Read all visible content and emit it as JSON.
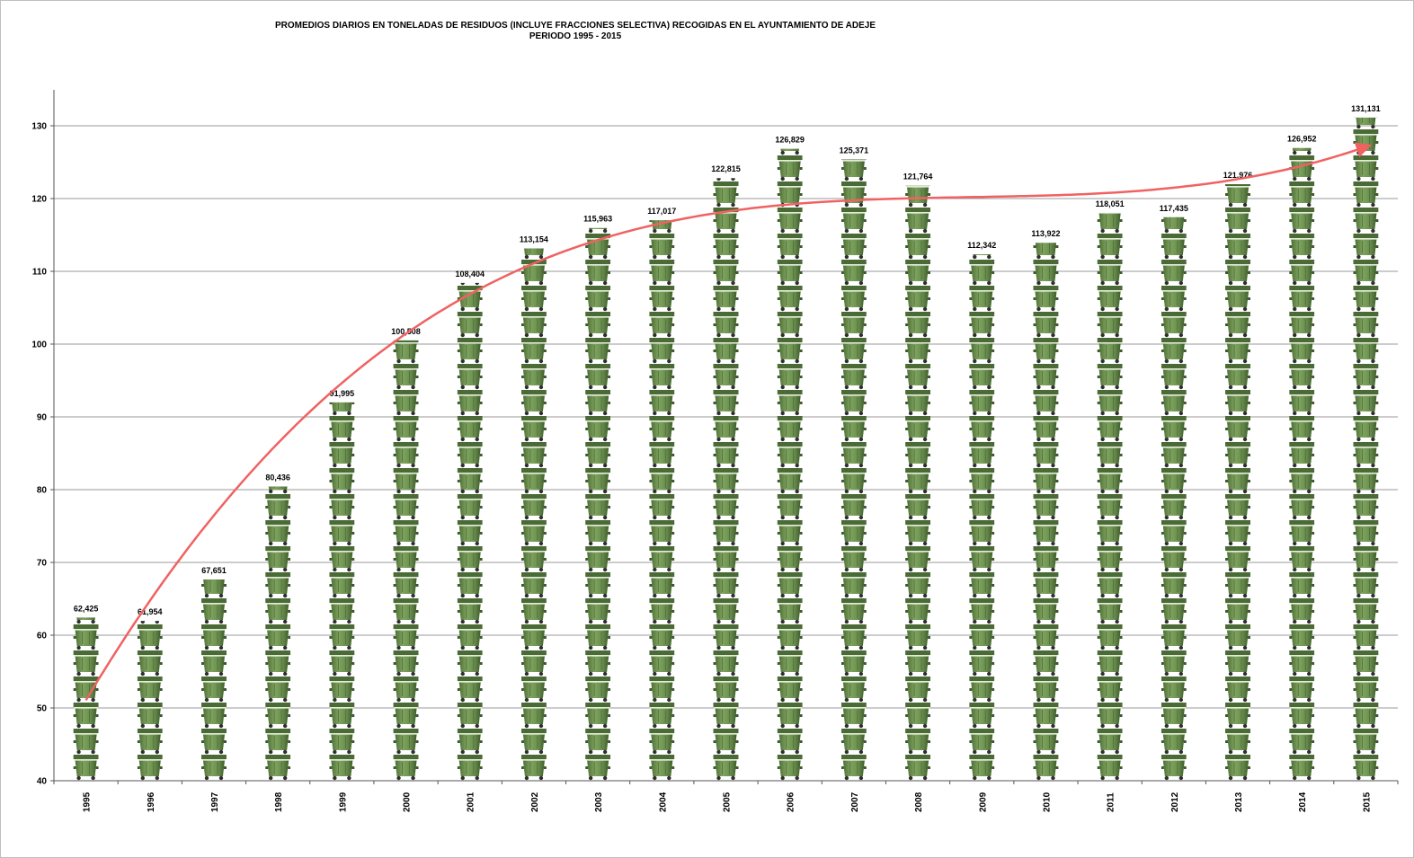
{
  "chart_data": {
    "type": "bar",
    "title": "PROMEDIOS DIARIOS EN TONELADAS DE RESIDUOS (INCLUYE FRACCIONES SELECTIVA) RECOGIDAS EN EL AYUNTAMIENTO DE ADEJE",
    "subtitle": "PERIODO 1995 - 2015",
    "xlabel": "",
    "ylabel": "",
    "ylim": [
      40,
      135
    ],
    "yticks": [
      "40",
      "50",
      "60",
      "70",
      "80",
      "90",
      "100",
      "110",
      "120",
      "130"
    ],
    "grid": true,
    "legend": "none",
    "bar_style": "stacked green waste container pictograms",
    "bar_color": "#6a8e4e",
    "trendline_color": "#f06262",
    "categories": [
      "1995",
      "1996",
      "1997",
      "1998",
      "1999",
      "2000",
      "2001",
      "2002",
      "2003",
      "2004",
      "2005",
      "2006",
      "2007",
      "2008",
      "2009",
      "2010",
      "2011",
      "2012",
      "2013",
      "2014",
      "2015"
    ],
    "values": [
      62.425,
      61.954,
      67.651,
      80.436,
      91.995,
      100.508,
      108.404,
      113.154,
      115.963,
      117.017,
      122.815,
      126.829,
      125.371,
      121.764,
      112.342,
      113.922,
      118.051,
      117.435,
      121.976,
      126.952,
      131.131
    ],
    "data_labels": [
      "62,425",
      "61,954",
      "67,651",
      "80,436",
      "91,995",
      "100,508",
      "108,404",
      "113,154",
      "115,963",
      "117,017",
      "122,815",
      "126,829",
      "125,371",
      "121,764",
      "112,342",
      "113,922",
      "118,051",
      "117,435",
      "121,976",
      "126,952",
      "131,131"
    ],
    "trendline": "smooth polynomial fit with arrow head"
  }
}
